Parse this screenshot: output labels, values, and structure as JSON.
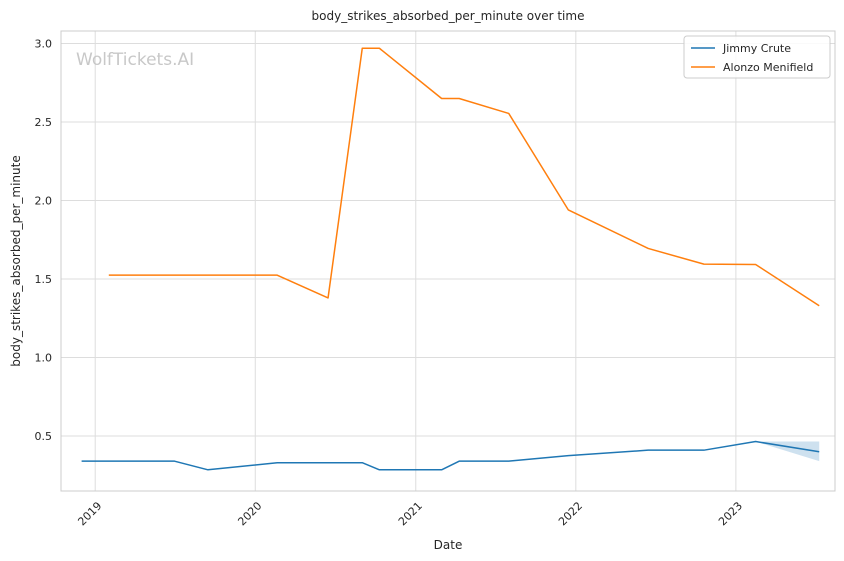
{
  "chart_data": {
    "type": "line",
    "title": "body_strikes_absorbed_per_minute over time",
    "xlabel": "Date",
    "ylabel": "body_strikes_absorbed_per_minute",
    "watermark": "WolfTickets.AI",
    "xlim": [
      "2018-10-15",
      "2023-08-15"
    ],
    "ylim": [
      0.15,
      3.08
    ],
    "x_ticks": [
      "2019-01-01",
      "2020-01-01",
      "2021-01-01",
      "2022-01-01",
      "2023-01-01"
    ],
    "x_tick_labels": [
      "2019",
      "2020",
      "2021",
      "2022",
      "2023"
    ],
    "y_ticks": [
      0.5,
      1.0,
      1.5,
      2.0,
      2.5,
      3.0
    ],
    "y_tick_labels": [
      "0.5",
      "1.0",
      "1.5",
      "2.0",
      "2.5",
      "3.0"
    ],
    "grid": true,
    "legend_position": "top-right",
    "series": [
      {
        "name": "Jimmy Crute",
        "color": "#1f77b4",
        "points": [
          [
            "2018-12-01",
            0.34
          ],
          [
            "2019-07-01",
            0.34
          ],
          [
            "2019-09-15",
            0.285
          ],
          [
            "2020-02-20",
            0.33
          ],
          [
            "2020-09-01",
            0.33
          ],
          [
            "2020-10-10",
            0.285
          ],
          [
            "2021-03-01",
            0.285
          ],
          [
            "2021-04-10",
            0.34
          ],
          [
            "2021-08-01",
            0.34
          ],
          [
            "2021-12-15",
            0.375
          ],
          [
            "2022-06-15",
            0.41
          ],
          [
            "2022-10-20",
            0.41
          ],
          [
            "2023-02-15",
            0.465
          ],
          [
            "2023-07-10",
            0.4
          ]
        ],
        "confidence_band": [
          [
            "2023-02-15",
            0.465,
            0.465
          ],
          [
            "2023-07-10",
            0.34,
            0.465
          ]
        ]
      },
      {
        "name": "Alonzo Menifield",
        "color": "#ff7f0e",
        "points": [
          [
            "2019-02-01",
            1.525
          ],
          [
            "2020-02-20",
            1.525
          ],
          [
            "2020-06-15",
            1.38
          ],
          [
            "2020-09-01",
            2.97
          ],
          [
            "2020-10-10",
            2.97
          ],
          [
            "2021-03-01",
            2.65
          ],
          [
            "2021-04-10",
            2.65
          ],
          [
            "2021-08-01",
            2.555
          ],
          [
            "2021-12-15",
            1.94
          ],
          [
            "2022-06-15",
            1.695
          ],
          [
            "2022-10-20",
            1.595
          ],
          [
            "2023-02-15",
            1.593
          ],
          [
            "2023-07-10",
            1.33
          ]
        ]
      }
    ]
  }
}
